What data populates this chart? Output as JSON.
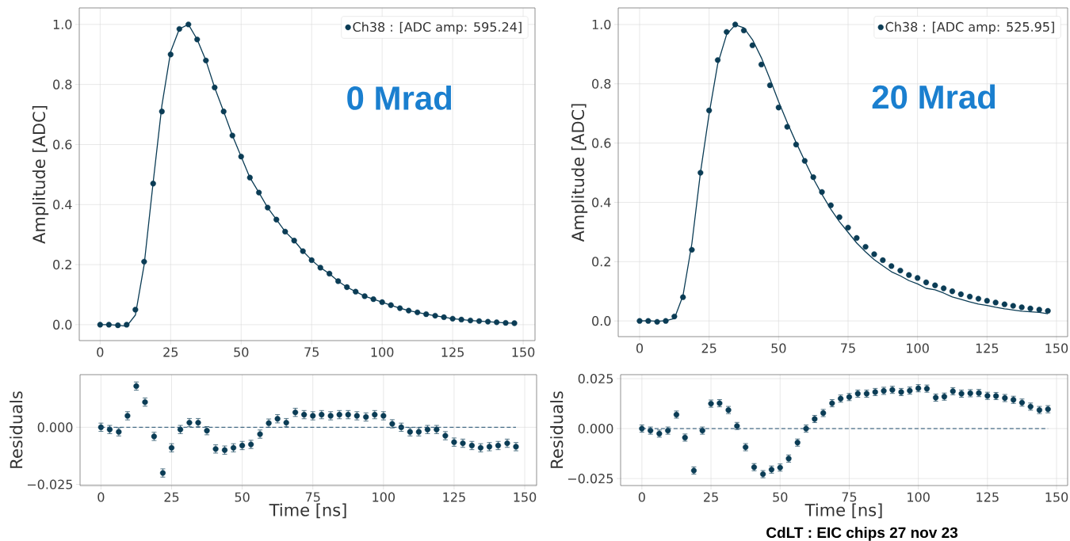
{
  "chart_data": [
    {
      "type": "scatter",
      "ylabel": "Amplitude [ADC]",
      "grid": true,
      "legend": "top right",
      "annotations": [
        "0 Mrad"
      ],
      "xlim": [
        -7.4,
        154.2
      ],
      "xticks": [
        0,
        25,
        50,
        75,
        100,
        125,
        150
      ],
      "ylim": [
        -0.053,
        1.055
      ],
      "yticks": [
        {
          "value": 0,
          "label": "0.0"
        },
        {
          "value": 0.2,
          "label": "0.2"
        },
        {
          "value": 0.4,
          "label": "0.4"
        },
        {
          "value": 0.6,
          "label": "0.6"
        },
        {
          "value": 0.8,
          "label": "0.8"
        },
        {
          "value": 1,
          "label": "1.0"
        }
      ],
      "x": [
        0,
        3.1,
        6.3,
        9.4,
        12.5,
        15.6,
        18.8,
        21.9,
        25,
        28.1,
        31.3,
        34.4,
        37.5,
        40.6,
        43.8,
        46.9,
        50,
        53.1,
        56.3,
        59.4,
        62.5,
        65.6,
        68.8,
        71.9,
        75,
        78.1,
        81.3,
        84.4,
        87.5,
        90.6,
        93.8,
        96.9,
        100,
        103.1,
        106.3,
        109.4,
        112.5,
        115.6,
        118.8,
        121.9,
        125,
        128.1,
        131.3,
        134.4,
        137.5,
        140.6,
        143.8,
        146.9
      ],
      "series": [
        {
          "type": "line",
          "color": "#0b3c55",
          "values": [
            0,
            0,
            -0.002,
            -0.005,
            0.032,
            0.199,
            0.474,
            0.73,
            0.909,
            0.985,
            1.0,
            0.95,
            0.88,
            0.79,
            0.71,
            0.63,
            0.56,
            0.49,
            0.44,
            0.39,
            0.35,
            0.31,
            0.28,
            0.245,
            0.215,
            0.19,
            0.17,
            0.145,
            0.125,
            0.11,
            0.095,
            0.085,
            0.075,
            0.065,
            0.055,
            0.047,
            0.041,
            0.035,
            0.03,
            0.025,
            0.02,
            0.017,
            0.014,
            0.012,
            0.01,
            0.008,
            0.006,
            0.005
          ]
        },
        {
          "name": "Ch38 : [ADC amp: 595.24]",
          "marker": "circle",
          "color": "#0b3c55",
          "values": [
            0,
            0,
            -0.002,
            0,
            0.05,
            0.21,
            0.47,
            0.71,
            0.9,
            0.985,
            1.0,
            0.95,
            0.88,
            0.79,
            0.71,
            0.63,
            0.56,
            0.49,
            0.44,
            0.39,
            0.35,
            0.31,
            0.28,
            0.245,
            0.215,
            0.19,
            0.17,
            0.145,
            0.125,
            0.11,
            0.095,
            0.085,
            0.075,
            0.065,
            0.055,
            0.047,
            0.041,
            0.035,
            0.03,
            0.025,
            0.02,
            0.017,
            0.014,
            0.012,
            0.01,
            0.008,
            0.006,
            0.005
          ]
        }
      ]
    },
    {
      "type": "scatter",
      "ylabel": "Amplitude [ADC]",
      "grid": true,
      "legend": "top right",
      "annotations": [
        "20 Mrad"
      ],
      "xlim": [
        -7.7,
        154
      ],
      "xticks": [
        0,
        25,
        50,
        75,
        100,
        125,
        150
      ],
      "ylim": [
        -0.053,
        1.056
      ],
      "yticks": [
        {
          "value": 0,
          "label": "0.0"
        },
        {
          "value": 0.2,
          "label": "0.2"
        },
        {
          "value": 0.4,
          "label": "0.4"
        },
        {
          "value": 0.6,
          "label": "0.6"
        },
        {
          "value": 0.8,
          "label": "0.8"
        },
        {
          "value": 1,
          "label": "1.0"
        }
      ],
      "x": [
        0,
        3.1,
        6.3,
        9.4,
        12.5,
        15.6,
        18.8,
        21.9,
        25,
        28.1,
        31.3,
        34.4,
        37.5,
        40.6,
        43.8,
        46.9,
        50,
        53.1,
        56.3,
        59.4,
        62.5,
        65.6,
        68.8,
        71.9,
        75,
        78.1,
        81.3,
        84.4,
        87.5,
        90.6,
        93.8,
        96.9,
        100,
        103.1,
        106.3,
        109.4,
        112.5,
        115.6,
        118.8,
        121.9,
        125,
        128.1,
        131.3,
        134.4,
        137.5,
        140.6,
        143.8,
        146.9
      ],
      "series": [
        {
          "type": "line",
          "color": "#0b3c55",
          "values": [
            0,
            0.001,
            -0.001,
            0.001,
            0.008,
            0.085,
            0.261,
            0.501,
            0.698,
            0.867,
            0.966,
            0.999,
            0.989,
            0.949,
            0.888,
            0.816,
            0.74,
            0.67,
            0.602,
            0.54,
            0.48,
            0.427,
            0.377,
            0.335,
            0.299,
            0.263,
            0.233,
            0.207,
            0.186,
            0.166,
            0.152,
            0.136,
            0.125,
            0.11,
            0.105,
            0.094,
            0.081,
            0.073,
            0.064,
            0.057,
            0.052,
            0.046,
            0.041,
            0.037,
            0.033,
            0.031,
            0.029,
            0.024
          ]
        },
        {
          "name": "Ch38 : [ADC amp: 525.95]",
          "marker": "circle",
          "color": "#0b3c55",
          "values": [
            0,
            0,
            -0.003,
            0,
            0.015,
            0.08,
            0.24,
            0.5,
            0.71,
            0.88,
            0.975,
            1.0,
            0.98,
            0.93,
            0.865,
            0.795,
            0.72,
            0.655,
            0.595,
            0.54,
            0.485,
            0.435,
            0.39,
            0.35,
            0.315,
            0.28,
            0.25,
            0.225,
            0.205,
            0.185,
            0.17,
            0.155,
            0.145,
            0.13,
            0.12,
            0.11,
            0.1,
            0.09,
            0.082,
            0.075,
            0.068,
            0.062,
            0.056,
            0.051,
            0.046,
            0.042,
            0.038,
            0.034
          ]
        }
      ]
    },
    {
      "type": "scatter",
      "xlabel": "Time [ns]",
      "ylabel": "Residuals",
      "grid": true,
      "xlim": [
        -7.4,
        154.2
      ],
      "xticks": [
        0,
        25,
        50,
        75,
        100,
        125,
        150
      ],
      "ylim": [
        -0.0255,
        0.023
      ],
      "yticks": [
        {
          "value": -0.025,
          "label": "−0.025"
        },
        {
          "value": 0,
          "label": "0.000"
        }
      ],
      "ref_lines": [
        {
          "axis": "y",
          "value": 0,
          "color": "#1f4e6e",
          "line_style": "dashed"
        }
      ],
      "x": [
        0,
        3.1,
        6.3,
        9.4,
        12.5,
        15.6,
        18.8,
        21.9,
        25,
        28.1,
        31.3,
        34.4,
        37.5,
        40.6,
        43.8,
        46.9,
        50,
        53.1,
        56.3,
        59.4,
        62.5,
        65.6,
        68.8,
        71.9,
        75,
        78.1,
        81.3,
        84.4,
        87.5,
        90.6,
        93.8,
        96.9,
        100,
        103.1,
        106.3,
        109.4,
        112.5,
        115.6,
        118.8,
        121.9,
        125,
        128.1,
        131.3,
        134.4,
        137.5,
        140.6,
        143.8,
        146.9
      ],
      "series": [
        {
          "marker": "circle",
          "color": "#0b3c55",
          "values": [
            0,
            -0.001,
            -0.002,
            0.005,
            0.018,
            0.011,
            -0.004,
            -0.02,
            -0.009,
            -0.001,
            0.002,
            0.002,
            -0.0015,
            -0.0095,
            -0.01,
            -0.009,
            -0.008,
            -0.0075,
            -0.003,
            0.0018,
            0.0037,
            0.002,
            0.0065,
            0.0055,
            0.005,
            0.0055,
            0.005,
            0.0055,
            0.0055,
            0.005,
            0.0045,
            0.0055,
            0.005,
            0.0015,
            0,
            -0.002,
            -0.002,
            -0.001,
            -0.001,
            -0.0037,
            -0.0065,
            -0.007,
            -0.008,
            -0.009,
            -0.0085,
            -0.008,
            -0.007,
            -0.0085
          ],
          "errors": [
            0.0018,
            0.0018,
            0.0018,
            0.0018,
            0.0018,
            0.0018,
            0.0018,
            0.0018,
            0.0018,
            0.0018,
            0.0018,
            0.0018,
            0.0018,
            0.0018,
            0.0018,
            0.0018,
            0.0018,
            0.0018,
            0.0018,
            0.0018,
            0.0018,
            0.0018,
            0.0018,
            0.0018,
            0.0018,
            0.0018,
            0.0018,
            0.0018,
            0.0018,
            0.0018,
            0.0018,
            0.0018,
            0.0018,
            0.0018,
            0.0018,
            0.0018,
            0.0018,
            0.0018,
            0.0018,
            0.0018,
            0.0018,
            0.0018,
            0.0018,
            0.0018,
            0.0018,
            0.0018,
            0.0018,
            0.0018
          ]
        }
      ]
    },
    {
      "type": "scatter",
      "xlabel": "Time [ns]",
      "ylabel": "Residuals",
      "grid": true,
      "annotations": [
        "CdLT :   EIC chips 27 nov 23"
      ],
      "xlim": [
        -7.7,
        154
      ],
      "xticks": [
        0,
        25,
        50,
        75,
        100,
        125,
        150
      ],
      "ylim": [
        -0.0285,
        0.027
      ],
      "yticks": [
        {
          "value": -0.025,
          "label": "−0.025"
        },
        {
          "value": 0,
          "label": "0.000"
        },
        {
          "value": 0.025,
          "label": "0.025"
        }
      ],
      "ref_lines": [
        {
          "axis": "y",
          "value": 0,
          "color": "#1f4e6e",
          "line_style": "dashed"
        }
      ],
      "x": [
        0,
        3.1,
        6.3,
        9.4,
        12.5,
        15.6,
        18.8,
        21.9,
        25,
        28.1,
        31.3,
        34.4,
        37.5,
        40.6,
        43.8,
        46.9,
        50,
        53.1,
        56.3,
        59.4,
        62.5,
        65.6,
        68.8,
        71.9,
        75,
        78.1,
        81.3,
        84.4,
        87.5,
        90.6,
        93.8,
        96.9,
        100,
        103.1,
        106.3,
        109.4,
        112.5,
        115.6,
        118.8,
        121.9,
        125,
        128.1,
        131.3,
        134.4,
        137.5,
        140.6,
        143.8,
        146.9
      ],
      "series": [
        {
          "marker": "circle",
          "color": "#0b3c55",
          "values": [
            0,
            -0.001,
            -0.0025,
            -0.001,
            0.007,
            -0.0045,
            -0.021,
            -0.001,
            0.0125,
            0.0127,
            0.0093,
            0.0013,
            -0.0093,
            -0.0193,
            -0.0228,
            -0.0205,
            -0.0195,
            -0.015,
            -0.007,
            0,
            0.0048,
            0.0078,
            0.0127,
            0.015,
            0.0158,
            0.0175,
            0.0175,
            0.0183,
            0.0189,
            0.0194,
            0.0183,
            0.019,
            0.0202,
            0.02,
            0.0155,
            0.016,
            0.0187,
            0.0175,
            0.0177,
            0.0178,
            0.0164,
            0.0163,
            0.0153,
            0.0144,
            0.013,
            0.011,
            0.0093,
            0.0097
          ],
          "errors": [
            0.0018,
            0.0018,
            0.0018,
            0.0018,
            0.0018,
            0.0018,
            0.0018,
            0.0018,
            0.0018,
            0.0018,
            0.0018,
            0.0018,
            0.0018,
            0.0018,
            0.0018,
            0.0018,
            0.0018,
            0.0018,
            0.0018,
            0.0018,
            0.0018,
            0.0018,
            0.0018,
            0.0018,
            0.0018,
            0.0018,
            0.0018,
            0.0018,
            0.0018,
            0.0018,
            0.0018,
            0.0018,
            0.0018,
            0.0018,
            0.0018,
            0.0018,
            0.0018,
            0.0018,
            0.0018,
            0.0018,
            0.0018,
            0.0018,
            0.0018,
            0.0018,
            0.0018,
            0.0018,
            0.0018,
            0.0018
          ]
        }
      ]
    }
  ]
}
